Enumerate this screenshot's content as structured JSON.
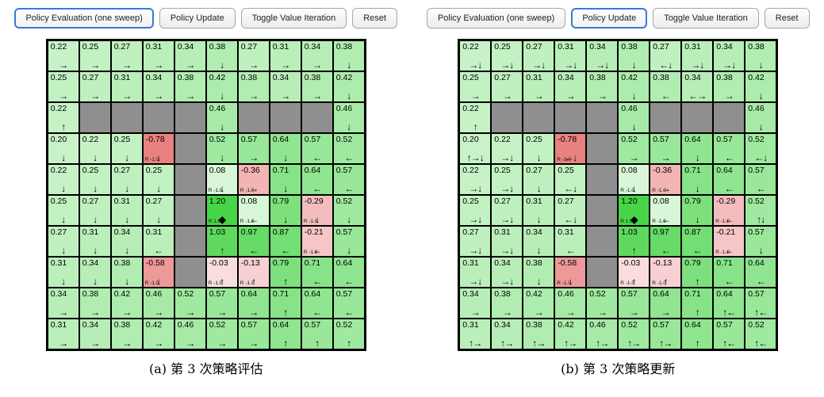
{
  "colors": {
    "active_button_border": "#3b77d8",
    "button_border": "#a6a6a6",
    "grid_line": "#000000",
    "wall": "#8f8f8f",
    "positive_value_green": "#7fd87f",
    "negative_value_red": "#f3b6b6",
    "goal_green": "#6fcf6f"
  },
  "panels": [
    {
      "id": "a",
      "caption": "(a) 第 3 次策略评估",
      "buttons": [
        {
          "label": "Policy Evaluation (one sweep)",
          "active": true
        },
        {
          "label": "Policy Update",
          "active": false
        },
        {
          "label": "Toggle Value Iteration",
          "active": false
        },
        {
          "label": "Reset",
          "active": false
        }
      ],
      "grid": {
        "rows": [
          [
            [
              "0.22",
              "→"
            ],
            [
              "0.25",
              "→"
            ],
            [
              "0.27",
              "→"
            ],
            [
              "0.31",
              "→"
            ],
            [
              "0.34",
              "→"
            ],
            [
              "0.38",
              "↓"
            ],
            [
              "0.27",
              "→"
            ],
            [
              "0.31",
              "→"
            ],
            [
              "0.34",
              "→"
            ],
            [
              "0.38",
              "↓"
            ]
          ],
          [
            [
              "0.25",
              "→"
            ],
            [
              "0.27",
              "→"
            ],
            [
              "0.31",
              "→"
            ],
            [
              "0.34",
              "→"
            ],
            [
              "0.38",
              "→"
            ],
            [
              "0.42",
              "↓"
            ],
            [
              "0.38",
              "→"
            ],
            [
              "0.34",
              "→"
            ],
            [
              "0.38",
              "→"
            ],
            [
              "0.42",
              "↓"
            ]
          ],
          [
            [
              "0.22",
              "↑"
            ],
            "W",
            "W",
            "W",
            "W",
            [
              "0.46",
              "↓"
            ],
            "W",
            "W",
            "W",
            [
              "0.46",
              "↓"
            ]
          ],
          [
            [
              "0.20",
              "↓"
            ],
            [
              "0.22",
              "↓"
            ],
            [
              "0.25",
              "↓"
            ],
            [
              "-0.78",
              "↓",
              "R -1.0"
            ],
            "W",
            [
              "0.52",
              "↓"
            ],
            [
              "0.57",
              "→"
            ],
            [
              "0.64",
              "↓"
            ],
            [
              "0.57",
              "←"
            ],
            [
              "0.52",
              "←"
            ]
          ],
          [
            [
              "0.22",
              "↓"
            ],
            [
              "0.25",
              "↓"
            ],
            [
              "0.27",
              "↓"
            ],
            [
              "0.25",
              "↓"
            ],
            "W",
            [
              "0.08",
              "↓",
              "R -1.0"
            ],
            [
              "-0.36",
              "→",
              "R -1.0"
            ],
            [
              "0.71",
              "↓"
            ],
            [
              "0.64",
              "←"
            ],
            [
              "0.57",
              "←"
            ]
          ],
          [
            [
              "0.25",
              "↓"
            ],
            [
              "0.27",
              "↓"
            ],
            [
              "0.31",
              "↓"
            ],
            [
              "0.27",
              "↓"
            ],
            "W",
            [
              "1.20",
              "◆",
              "R 1.0"
            ],
            [
              "0.08",
              "←",
              "R -1.0"
            ],
            [
              "0.79",
              "↓"
            ],
            [
              "-0.29",
              "↓",
              "R -1.0"
            ],
            [
              "0.52",
              "↓"
            ]
          ],
          [
            [
              "0.27",
              "↓"
            ],
            [
              "0.31",
              "↓"
            ],
            [
              "0.34",
              "↓"
            ],
            [
              "0.31",
              "←"
            ],
            "W",
            [
              "1.03",
              "↑"
            ],
            [
              "0.97",
              "←"
            ],
            [
              "0.87",
              "←"
            ],
            [
              "-0.21",
              "←",
              "R -1.0"
            ],
            [
              "0.57",
              "↓"
            ]
          ],
          [
            [
              "0.31",
              "↓"
            ],
            [
              "0.34",
              "↓"
            ],
            [
              "0.38",
              "↓"
            ],
            [
              "-0.58",
              "↓",
              "R -1.0"
            ],
            "W",
            [
              "-0.03",
              "↑",
              "R -1.0"
            ],
            [
              "-0.13",
              "↑",
              "R -1.0"
            ],
            [
              "0.79",
              "↑"
            ],
            [
              "0.71",
              "←"
            ],
            [
              "0.64",
              "←"
            ]
          ],
          [
            [
              "0.34",
              "→"
            ],
            [
              "0.38",
              "→"
            ],
            [
              "0.42",
              "→"
            ],
            [
              "0.46",
              "→"
            ],
            [
              "0.52",
              "→"
            ],
            [
              "0.57",
              "→"
            ],
            [
              "0.64",
              "→"
            ],
            [
              "0.71",
              "↑"
            ],
            [
              "0.64",
              "←"
            ],
            [
              "0.57",
              "←"
            ]
          ],
          [
            [
              "0.31",
              "→"
            ],
            [
              "0.34",
              "→"
            ],
            [
              "0.38",
              "→"
            ],
            [
              "0.42",
              "→"
            ],
            [
              "0.46",
              "→"
            ],
            [
              "0.52",
              "→"
            ],
            [
              "0.57",
              "→"
            ],
            [
              "0.64",
              "↑"
            ],
            [
              "0.57",
              "↑"
            ],
            [
              "0.52",
              "↑"
            ]
          ]
        ]
      }
    },
    {
      "id": "b",
      "caption": "(b) 第 3 次策略更新",
      "buttons": [
        {
          "label": "Policy Evaluation (one sweep)",
          "active": false
        },
        {
          "label": "Policy Update",
          "active": true
        },
        {
          "label": "Toggle Value Iteration",
          "active": false
        },
        {
          "label": "Reset",
          "active": false
        }
      ],
      "grid": {
        "rows": [
          [
            [
              "0.22",
              "→↓"
            ],
            [
              "0.25",
              "→↓"
            ],
            [
              "0.27",
              "→↓"
            ],
            [
              "0.31",
              "→↓"
            ],
            [
              "0.34",
              "→↓"
            ],
            [
              "0.38",
              "↓"
            ],
            [
              "0.27",
              "←↓"
            ],
            [
              "0.31",
              "→↓"
            ],
            [
              "0.34",
              "→↓"
            ],
            [
              "0.38",
              "↓"
            ]
          ],
          [
            [
              "0.25",
              "→"
            ],
            [
              "0.27",
              "→"
            ],
            [
              "0.31",
              "→"
            ],
            [
              "0.34",
              "→"
            ],
            [
              "0.38",
              "→"
            ],
            [
              "0.42",
              "↓"
            ],
            [
              "0.38",
              "←"
            ],
            [
              "0.34",
              "←→"
            ],
            [
              "0.38",
              "→"
            ],
            [
              "0.42",
              "↓"
            ]
          ],
          [
            [
              "0.22",
              "↑"
            ],
            "W",
            "W",
            "W",
            "W",
            [
              "0.46",
              "↓"
            ],
            "W",
            "W",
            "W",
            [
              "0.46",
              "↓"
            ]
          ],
          [
            [
              "0.20",
              "↑→↓"
            ],
            [
              "0.22",
              "→↓"
            ],
            [
              "0.25",
              "↓"
            ],
            [
              "-0.78",
              "←↓",
              "R -1.0"
            ],
            "W",
            [
              "0.52",
              "→"
            ],
            [
              "0.57",
              "→"
            ],
            [
              "0.64",
              "↓"
            ],
            [
              "0.57",
              "←"
            ],
            [
              "0.52",
              "←↓"
            ]
          ],
          [
            [
              "0.22",
              "→↓"
            ],
            [
              "0.25",
              "→↓"
            ],
            [
              "0.27",
              "↓"
            ],
            [
              "0.25",
              "←↓"
            ],
            "W",
            [
              "0.08",
              "↓",
              "R -1.0"
            ],
            [
              "-0.36",
              "→",
              "R -1.0"
            ],
            [
              "0.71",
              "↓"
            ],
            [
              "0.64",
              "←"
            ],
            [
              "0.57",
              "←"
            ]
          ],
          [
            [
              "0.25",
              "→↓"
            ],
            [
              "0.27",
              "→↓"
            ],
            [
              "0.31",
              "↓"
            ],
            [
              "0.27",
              "←↓"
            ],
            "W",
            [
              "1.20",
              "◆",
              "R 1.0"
            ],
            [
              "0.08",
              "←",
              "R -1.0"
            ],
            [
              "0.79",
              "↓"
            ],
            [
              "-0.29",
              "←",
              "R -1.0"
            ],
            [
              "0.52",
              "↑↓"
            ]
          ],
          [
            [
              "0.27",
              "→↓"
            ],
            [
              "0.31",
              "→↓"
            ],
            [
              "0.34",
              "↓"
            ],
            [
              "0.31",
              "←"
            ],
            "W",
            [
              "1.03",
              "↑"
            ],
            [
              "0.97",
              "←"
            ],
            [
              "0.87",
              "←"
            ],
            [
              "-0.21",
              "←",
              "R -1.0"
            ],
            [
              "0.57",
              "↓"
            ]
          ],
          [
            [
              "0.31",
              "→↓"
            ],
            [
              "0.34",
              "→↓"
            ],
            [
              "0.38",
              "↓"
            ],
            [
              "-0.58",
              "↓",
              "R -1.0"
            ],
            "W",
            [
              "-0.03",
              "↑",
              "R -1.0"
            ],
            [
              "-0.13",
              "↑",
              "R -1.0"
            ],
            [
              "0.79",
              "↑"
            ],
            [
              "0.71",
              "←"
            ],
            [
              "0.64",
              "←"
            ]
          ],
          [
            [
              "0.34",
              "→"
            ],
            [
              "0.38",
              "→"
            ],
            [
              "0.42",
              "→"
            ],
            [
              "0.46",
              "→"
            ],
            [
              "0.52",
              "→"
            ],
            [
              "0.57",
              "→"
            ],
            [
              "0.64",
              "→"
            ],
            [
              "0.71",
              "↑"
            ],
            [
              "0.64",
              "↑←"
            ],
            [
              "0.57",
              "↑←"
            ]
          ],
          [
            [
              "0.31",
              "↑→"
            ],
            [
              "0.34",
              "↑→"
            ],
            [
              "0.38",
              "↑→"
            ],
            [
              "0.42",
              "↑→"
            ],
            [
              "0.46",
              "↑→"
            ],
            [
              "0.52",
              "↑→"
            ],
            [
              "0.57",
              "↑→"
            ],
            [
              "0.64",
              "↑"
            ],
            [
              "0.57",
              "↑←"
            ],
            [
              "0.52",
              "↑←"
            ]
          ]
        ]
      }
    }
  ]
}
